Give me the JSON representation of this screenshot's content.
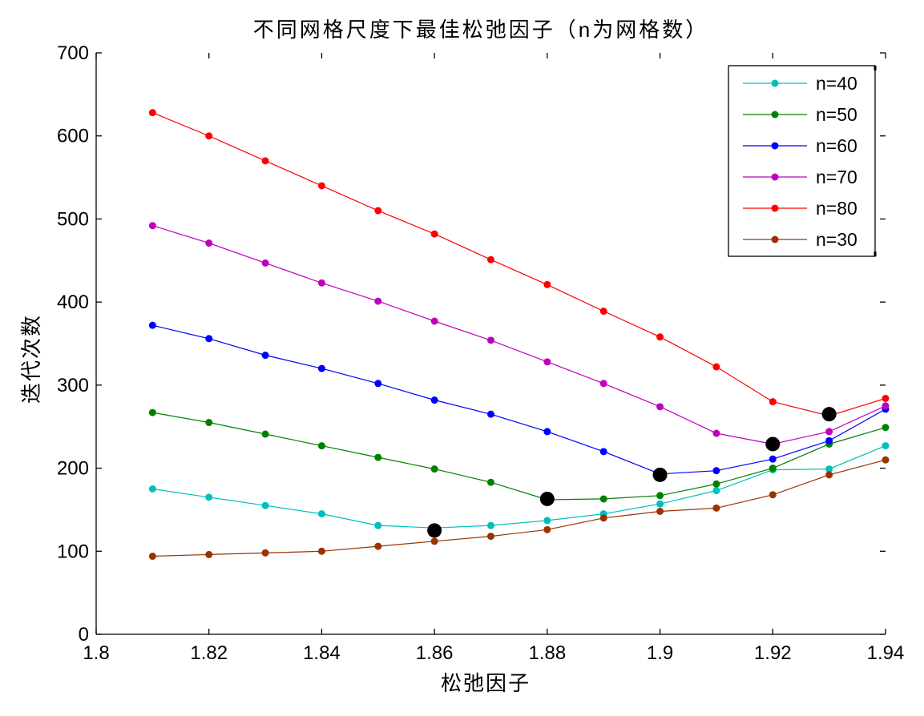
{
  "chart_data": {
    "type": "line",
    "title": "不同网格尺度下最佳松弛因子（n为网格数）",
    "xlabel": "松弛因子",
    "ylabel": "迭代次数",
    "xlim": [
      1.8,
      1.94
    ],
    "ylim": [
      0,
      700
    ],
    "x_ticks": [
      1.8,
      1.82,
      1.84,
      1.86,
      1.88,
      1.9,
      1.92,
      1.94
    ],
    "x_tick_labels": [
      "1.8",
      "1.82",
      "1.84",
      "1.86",
      "1.88",
      "1.9",
      "1.92",
      "1.94"
    ],
    "y_ticks": [
      0,
      100,
      200,
      300,
      400,
      500,
      600,
      700
    ],
    "y_tick_labels": [
      "0",
      "100",
      "200",
      "300",
      "400",
      "500",
      "600",
      "700"
    ],
    "grid": false,
    "legend_position": "top-right",
    "x": [
      1.81,
      1.82,
      1.83,
      1.84,
      1.85,
      1.86,
      1.87,
      1.88,
      1.89,
      1.9,
      1.91,
      1.92,
      1.93,
      1.94
    ],
    "series": [
      {
        "name": "n=40",
        "color": "#00bfbf",
        "values": [
          175,
          165,
          155,
          145,
          131,
          128,
          131,
          137,
          145,
          157,
          173,
          198,
          199,
          227
        ]
      },
      {
        "name": "n=50",
        "color": "#008000",
        "values": [
          267,
          255,
          241,
          227,
          213,
          199,
          183,
          162,
          163,
          167,
          181,
          200,
          229,
          249
        ]
      },
      {
        "name": "n=60",
        "color": "#0000ff",
        "values": [
          372,
          356,
          336,
          320,
          302,
          282,
          265,
          244,
          220,
          193,
          197,
          211,
          233,
          271
        ]
      },
      {
        "name": "n=70",
        "color": "#bf00bf",
        "values": [
          492,
          471,
          447,
          423,
          401,
          377,
          354,
          328,
          302,
          274,
          242,
          229,
          244,
          275
        ]
      },
      {
        "name": "n=80",
        "color": "#ff0000",
        "values": [
          628,
          600,
          570,
          540,
          510,
          482,
          451,
          421,
          389,
          358,
          322,
          280,
          263,
          284
        ]
      },
      {
        "name": "n=30",
        "color": "#993300",
        "values": [
          94,
          96,
          98,
          100,
          106,
          112,
          118,
          126,
          140,
          148,
          152,
          168,
          192,
          210
        ]
      }
    ],
    "optimum_markers": [
      {
        "x": 1.86,
        "y": 125
      },
      {
        "x": 1.88,
        "y": 163
      },
      {
        "x": 1.9,
        "y": 192
      },
      {
        "x": 1.92,
        "y": 229
      },
      {
        "x": 1.93,
        "y": 265
      }
    ]
  }
}
